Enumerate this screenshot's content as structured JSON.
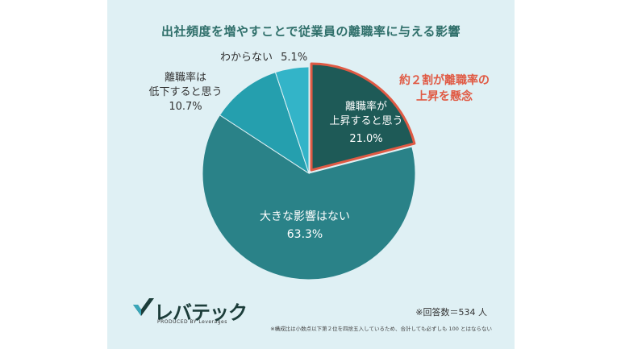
{
  "chart_data": {
    "type": "pie",
    "title": "出社頻度を増やすことで従業員の離職率に与える影響",
    "slices": [
      {
        "name": "離職率が上昇すると思う",
        "label_lines": [
          "離職率が",
          "上昇すると思う"
        ],
        "value": 21.0,
        "display": "21.0%",
        "color": "#1e5a57"
      },
      {
        "name": "大きな影響はない",
        "label_lines": [
          "大きな影響はない"
        ],
        "value": 63.3,
        "display": "63.3%",
        "color": "#2a8288"
      },
      {
        "name": "離職率は低下すると思う",
        "label_lines": [
          "離職率は",
          "低下すると思う"
        ],
        "value": 10.7,
        "display": "10.7%",
        "color": "#259fae"
      },
      {
        "name": "わからない",
        "label_lines": [
          "わからない"
        ],
        "value": 5.1,
        "display": "5.1%",
        "color": "#33b4c8"
      }
    ],
    "highlight": {
      "slice": "離職率が上昇すると思う",
      "border_color": "#e05a44"
    },
    "annotation": [
      "約２割が離職率の",
      "上昇を懸念"
    ]
  },
  "logo": {
    "name": "レバテック",
    "sub": "PRODUCED BY Leverages"
  },
  "notes": {
    "sample": "※回答数＝534 人",
    "rounding": "※構成比は小数点以下第２位を四捨五入しているため、合計しても必ずしも 100 とはならない"
  }
}
